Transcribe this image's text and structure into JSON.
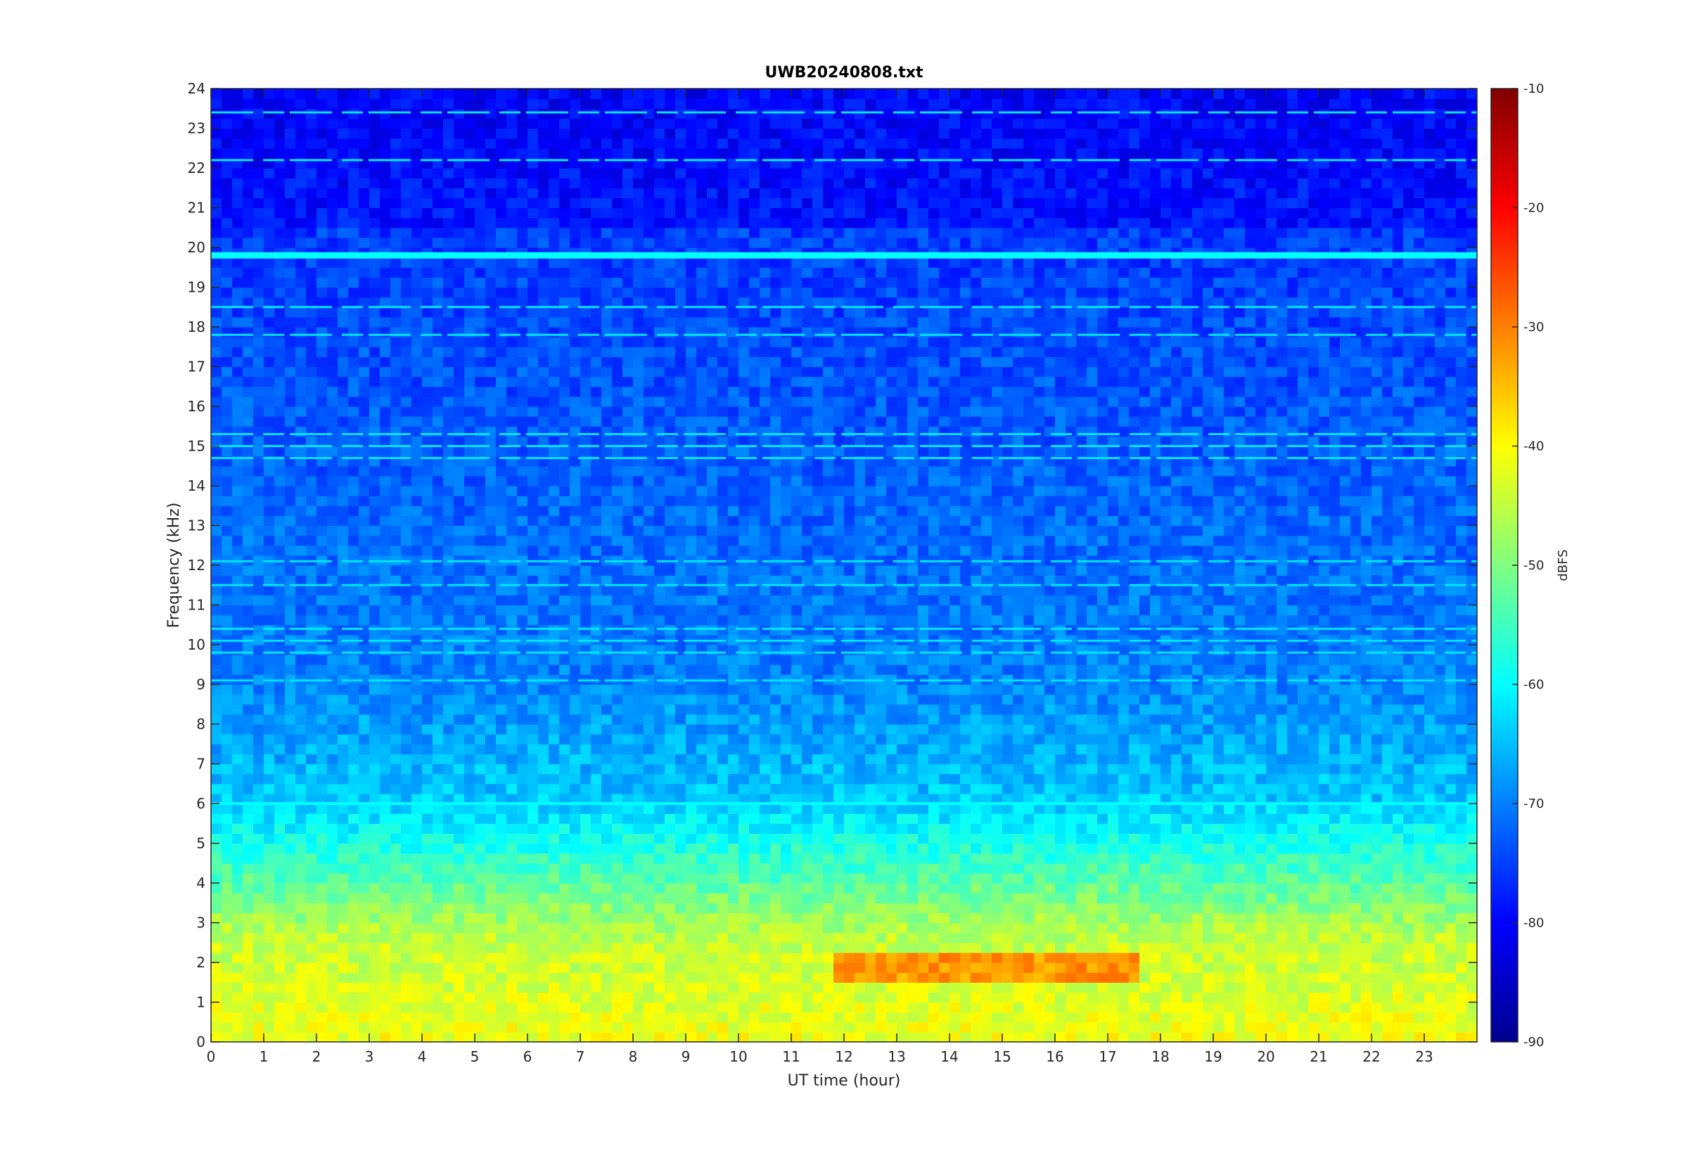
{
  "chart_data": {
    "type": "heatmap",
    "title": "UWB20240808.txt",
    "xlabel": "UT time (hour)",
    "ylabel": "Frequency (kHz)",
    "xlim": [
      0,
      24
    ],
    "ylim": [
      0,
      24
    ],
    "x_ticks": [
      "0",
      "1",
      "2",
      "3",
      "4",
      "5",
      "6",
      "7",
      "8",
      "9",
      "10",
      "11",
      "12",
      "13",
      "14",
      "15",
      "16",
      "17",
      "18",
      "19",
      "20",
      "21",
      "22",
      "23"
    ],
    "y_ticks": [
      "0",
      "1",
      "2",
      "3",
      "4",
      "5",
      "6",
      "7",
      "8",
      "9",
      "10",
      "11",
      "12",
      "13",
      "14",
      "15",
      "16",
      "17",
      "18",
      "19",
      "20",
      "21",
      "22",
      "23",
      "24"
    ],
    "colorbar": {
      "label": "dBFS",
      "range": [
        -90,
        -10
      ],
      "ticks": [
        "-10",
        "-20",
        "-30",
        "-40",
        "-50",
        "-60",
        "-70",
        "-80",
        "-90"
      ],
      "colormap": "jet"
    },
    "features": {
      "persistent_bands_khz": [
        19.8,
        6.0
      ],
      "transmitter_bands_khz": [
        23.4,
        22.2,
        18.5,
        17.8,
        15.3,
        15.0,
        14.7,
        12.1,
        11.5,
        10.4,
        10.1,
        9.8,
        9.1
      ],
      "high_energy_region": {
        "freq_khz": [
          0,
          2.6
        ],
        "dBFS_approx": -40
      },
      "peak_region": {
        "time_h": [
          11.8,
          17.5
        ],
        "freq_khz": [
          1.6,
          2.2
        ],
        "dBFS_approx": -30
      }
    }
  }
}
